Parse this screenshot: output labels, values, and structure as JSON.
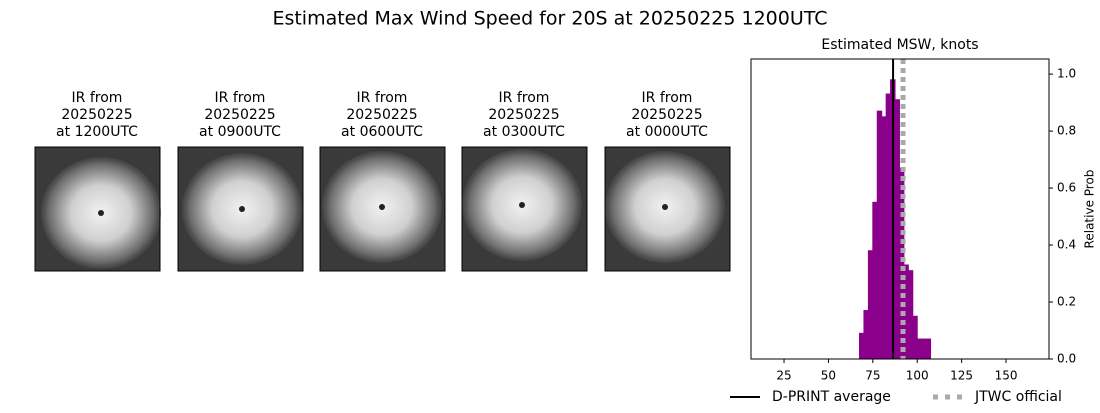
{
  "title": "Estimated Max Wind Speed for 20S at 20250225 1200UTC",
  "panels": [
    {
      "title_lines": [
        "IR from",
        "20250225",
        "at 1200UTC"
      ]
    },
    {
      "title_lines": [
        "IR from",
        "20250225",
        "at 0900UTC"
      ]
    },
    {
      "title_lines": [
        "IR from",
        "20250225",
        "at 0600UTC"
      ]
    },
    {
      "title_lines": [
        "IR from",
        "20250225",
        "at 0300UTC"
      ]
    },
    {
      "title_lines": [
        "IR from",
        "20250225",
        "at 0000UTC"
      ]
    }
  ],
  "chart_data": {
    "type": "histogram",
    "title": "Estimated MSW, knots",
    "ylabel": "Relative Prob",
    "bins": [
      15,
      67.5,
      70,
      72.5,
      75,
      77.5,
      80,
      82.5,
      85,
      87.5,
      90,
      92.5,
      95,
      97.5,
      100,
      102.5,
      105,
      107.5,
      170
    ],
    "values": [
      0,
      0.09,
      0.17,
      0.38,
      0.55,
      0.87,
      0.85,
      0.93,
      0.98,
      0.91,
      0.67,
      0.33,
      0.31,
      0.15,
      0.07,
      0.07,
      0.07,
      0
    ],
    "color": "#8b008b",
    "xlim": [
      6.4,
      174.2
    ],
    "xticks": [
      25,
      50,
      75,
      100,
      125,
      150
    ],
    "ylim": [
      0,
      1.053
    ],
    "yticks": [
      {
        "value": 0,
        "label": "0.0"
      },
      0.2,
      0.4,
      0.6,
      0.8,
      {
        "value": 1,
        "label": "1.0"
      }
    ],
    "lines": [
      {
        "name": "D-PRINT average",
        "x": 86.4,
        "color": "#000000",
        "style": "solid"
      },
      {
        "name": "JTWC official",
        "x": 92,
        "color": "#aaaaaa",
        "style": "dotted"
      }
    ],
    "legend": "bottom"
  }
}
